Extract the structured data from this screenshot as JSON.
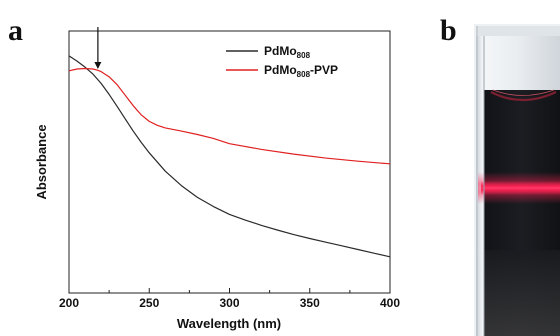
{
  "panel_a_label": "a",
  "panel_b_label": "b",
  "chart_data": {
    "type": "line",
    "title": "",
    "xlabel": "Wavelength (nm)",
    "ylabel": "Absorbance",
    "xlim": [
      200,
      400
    ],
    "ylim": [
      0,
      1
    ],
    "xticks": [
      200,
      250,
      300,
      350,
      400
    ],
    "x_tick_labels": [
      "200",
      "250",
      "300",
      "350",
      "400"
    ],
    "y_tick_labels_shown": false,
    "grid": false,
    "legend_position": "top-right",
    "annotation": {
      "type": "arrow",
      "x": 218,
      "y_from": 1.015,
      "y_to": 0.855
    },
    "series": [
      {
        "name": "PdMo808",
        "legend_base": "PdMo",
        "legend_sub": "808",
        "legend_suffix": "",
        "color": "#2b2b2b",
        "x": [
          200,
          205,
          210,
          215,
          220,
          225,
          230,
          235,
          240,
          245,
          250,
          260,
          270,
          280,
          290,
          300,
          310,
          320,
          330,
          340,
          350,
          360,
          370,
          380,
          390,
          400
        ],
        "y": [
          0.905,
          0.885,
          0.862,
          0.835,
          0.8,
          0.758,
          0.712,
          0.665,
          0.618,
          0.575,
          0.535,
          0.465,
          0.41,
          0.365,
          0.33,
          0.3,
          0.278,
          0.258,
          0.24,
          0.223,
          0.208,
          0.194,
          0.18,
          0.166,
          0.152,
          0.138
        ]
      },
      {
        "name": "PdMo808-PVP",
        "legend_base": "PdMo",
        "legend_sub": "808",
        "legend_suffix": "-PVP",
        "color": "#e02020",
        "x": [
          200,
          205,
          210,
          215,
          218,
          220,
          225,
          230,
          235,
          240,
          245,
          250,
          255,
          260,
          270,
          280,
          290,
          300,
          320,
          340,
          360,
          380,
          400
        ],
        "y": [
          0.848,
          0.855,
          0.857,
          0.855,
          0.85,
          0.845,
          0.825,
          0.795,
          0.755,
          0.715,
          0.68,
          0.655,
          0.64,
          0.63,
          0.618,
          0.605,
          0.59,
          0.57,
          0.548,
          0.53,
          0.515,
          0.503,
          0.493
        ]
      }
    ]
  }
}
